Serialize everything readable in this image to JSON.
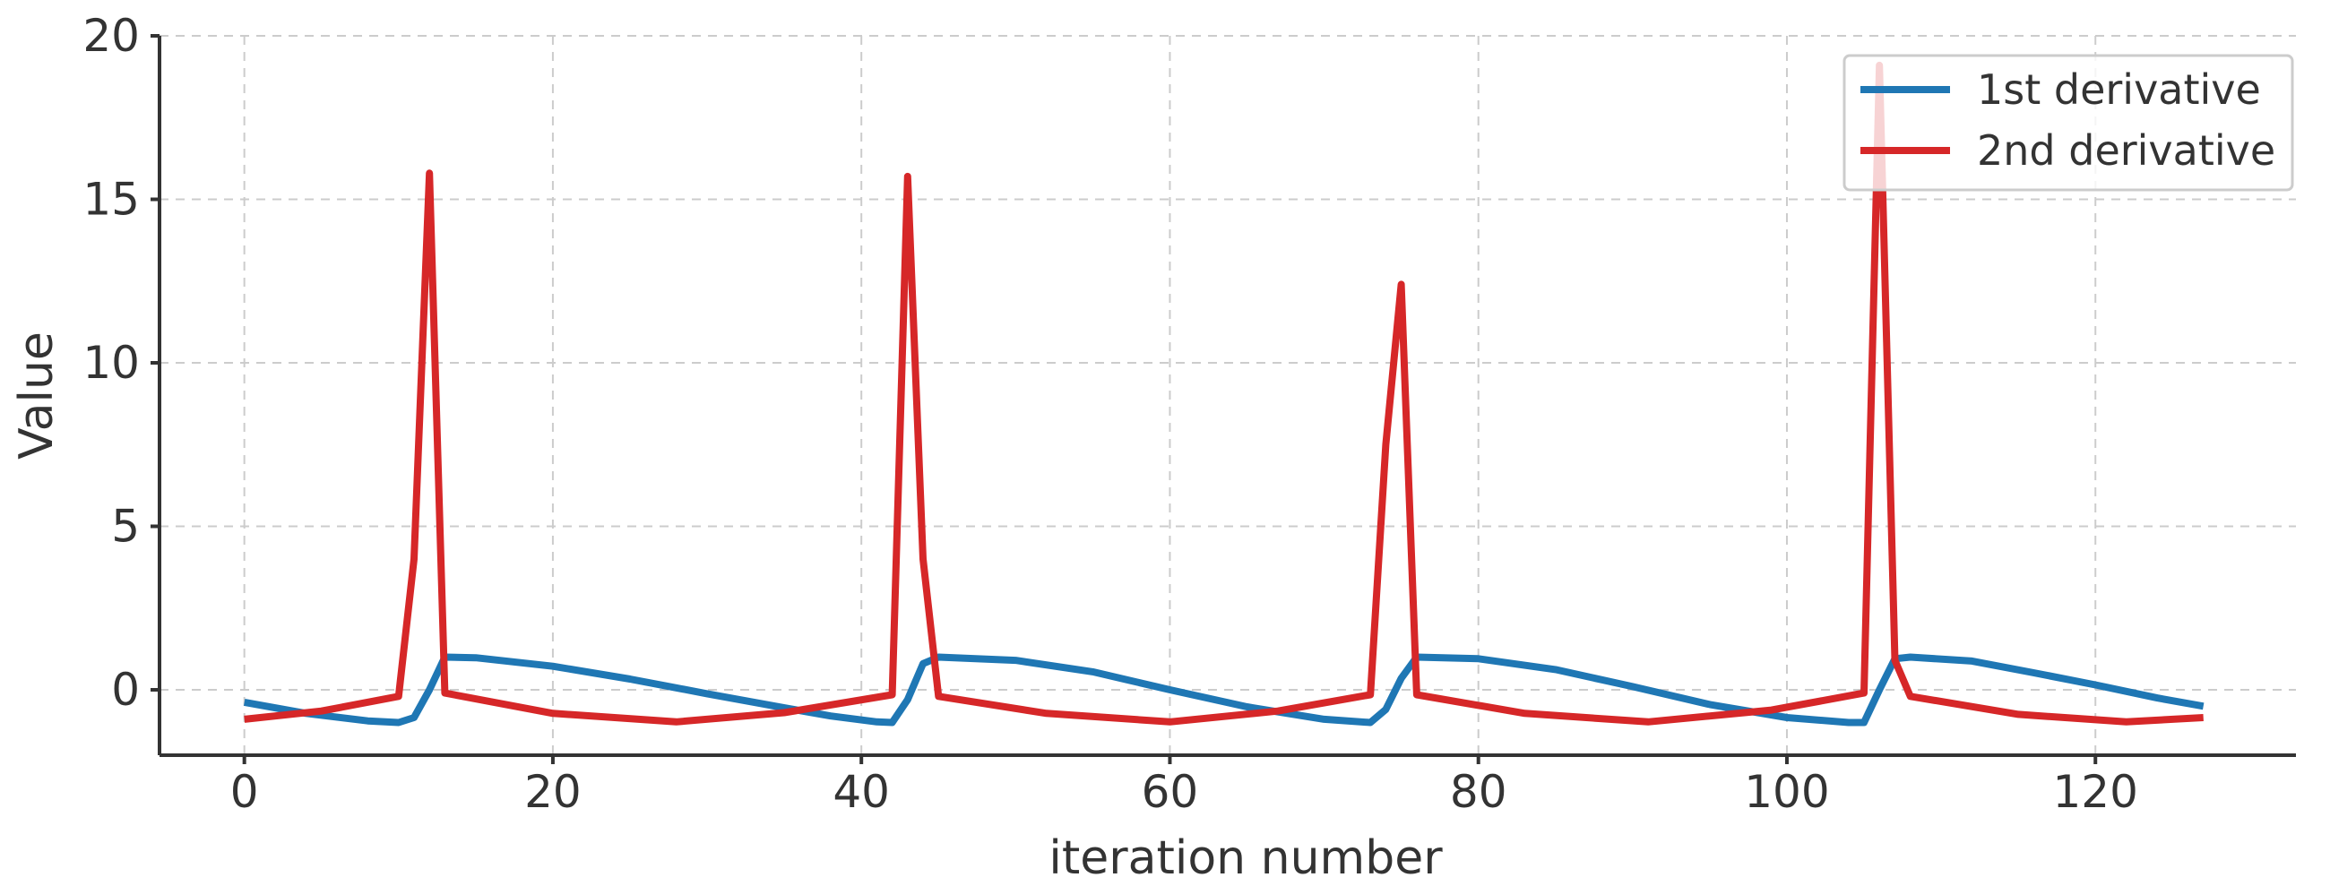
{
  "chart_data": {
    "type": "line",
    "xlabel": "iteration number",
    "ylabel": "Value",
    "xlim": [
      -5.5,
      133
    ],
    "ylim": [
      -2,
      20
    ],
    "xticks": [
      0,
      20,
      40,
      60,
      80,
      100,
      120
    ],
    "yticks": [
      0,
      5,
      10,
      15,
      20
    ],
    "grid": true,
    "legend_position": "top-right",
    "colors": {
      "first": "#1f77b4",
      "second": "#d62728",
      "axis": "#333333",
      "grid": "#cccccc"
    },
    "series": [
      {
        "name": "1st derivative",
        "color": "#1f77b4",
        "points": [
          [
            0,
            -0.38
          ],
          [
            4,
            -0.72
          ],
          [
            8,
            -0.95
          ],
          [
            10,
            -1.0
          ],
          [
            11,
            -0.85
          ],
          [
            12,
            0.0
          ],
          [
            13,
            1.0
          ],
          [
            15,
            0.98
          ],
          [
            20,
            0.72
          ],
          [
            25,
            0.33
          ],
          [
            30,
            -0.12
          ],
          [
            35,
            -0.55
          ],
          [
            38,
            -0.8
          ],
          [
            41,
            -0.98
          ],
          [
            42,
            -1.0
          ],
          [
            43,
            -0.3
          ],
          [
            44,
            0.8
          ],
          [
            45,
            1.0
          ],
          [
            50,
            0.9
          ],
          [
            55,
            0.55
          ],
          [
            60,
            0.0
          ],
          [
            65,
            -0.52
          ],
          [
            70,
            -0.9
          ],
          [
            73,
            -1.0
          ],
          [
            74,
            -0.6
          ],
          [
            75,
            0.35
          ],
          [
            76,
            1.0
          ],
          [
            80,
            0.95
          ],
          [
            85,
            0.62
          ],
          [
            90,
            0.1
          ],
          [
            95,
            -0.45
          ],
          [
            100,
            -0.85
          ],
          [
            104,
            -1.0
          ],
          [
            105,
            -1.0
          ],
          [
            106,
            0.0
          ],
          [
            107,
            0.95
          ],
          [
            108,
            1.0
          ],
          [
            112,
            0.88
          ],
          [
            116,
            0.52
          ],
          [
            120,
            0.15
          ],
          [
            124,
            -0.25
          ],
          [
            127,
            -0.5
          ]
        ]
      },
      {
        "name": "2nd derivative",
        "color": "#d62728",
        "points": [
          [
            0,
            -0.9
          ],
          [
            5,
            -0.65
          ],
          [
            10,
            -0.2
          ],
          [
            11,
            4.0
          ],
          [
            12,
            15.8
          ],
          [
            13,
            -0.1
          ],
          [
            20,
            -0.72
          ],
          [
            28,
            -0.98
          ],
          [
            35,
            -0.7
          ],
          [
            42,
            -0.15
          ],
          [
            43,
            15.7
          ],
          [
            44,
            4.0
          ],
          [
            45,
            -0.2
          ],
          [
            52,
            -0.72
          ],
          [
            60,
            -0.98
          ],
          [
            67,
            -0.65
          ],
          [
            73,
            -0.15
          ],
          [
            74,
            7.5
          ],
          [
            75,
            12.4
          ],
          [
            76,
            -0.15
          ],
          [
            83,
            -0.72
          ],
          [
            91,
            -0.98
          ],
          [
            99,
            -0.62
          ],
          [
            105,
            -0.1
          ],
          [
            106,
            19.1
          ],
          [
            107,
            0.9
          ],
          [
            108,
            -0.2
          ],
          [
            115,
            -0.75
          ],
          [
            122,
            -0.98
          ],
          [
            127,
            -0.85
          ]
        ]
      }
    ]
  }
}
